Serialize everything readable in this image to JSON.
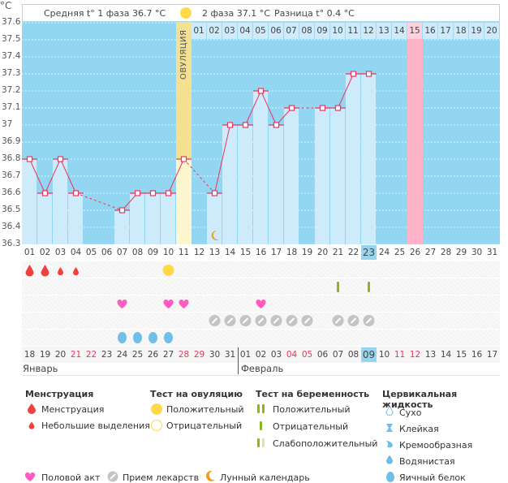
{
  "header": {
    "unit_label": "°C",
    "phase1_avg": "Средняя t° 1 фаза 36.7 °C",
    "phase2_avg": "2 фаза 37.1 °C",
    "difference": "Разница t° 0.4 °C",
    "ovulation_label": "ОВУЛЯЦИЯ"
  },
  "colors": {
    "plot_bg": "#93d6f2",
    "bar_fill": "#cdebfa",
    "line": "#e8365e",
    "ovulation_band": "#f5e08f",
    "ovulation_band_light": "#fdf6cf",
    "pink_day": "#ffb3c6",
    "highlight_day": "#93d6f2"
  },
  "chart_data": {
    "type": "line",
    "title": "",
    "xlabel": "",
    "ylabel": "°C",
    "ylim": [
      36.3,
      37.6
    ],
    "yticks": [
      "37.6",
      "37.5",
      "37.4",
      "37.3",
      "37.2",
      "37.1",
      "37",
      "36.9",
      "36.8",
      "36.7",
      "36.6",
      "36.5",
      "36.4",
      "36.3"
    ],
    "cycle_days": [
      "01",
      "02",
      "03",
      "04",
      "05",
      "06",
      "07",
      "08",
      "09",
      "10",
      "11",
      "12",
      "13",
      "14",
      "15",
      "16",
      "17",
      "18",
      "19",
      "20",
      "21",
      "22",
      "23",
      "24",
      "25",
      "26",
      "27",
      "28",
      "29",
      "30",
      "31"
    ],
    "after_ovulation_days": [
      "01",
      "02",
      "03",
      "04",
      "05",
      "06",
      "07",
      "08",
      "09",
      "10",
      "11",
      "12",
      "13",
      "14",
      "15",
      "16",
      "17",
      "18",
      "19",
      "20"
    ],
    "temperatures": [
      36.8,
      36.6,
      36.8,
      36.6,
      null,
      null,
      36.5,
      36.6,
      36.6,
      36.6,
      36.8,
      null,
      36.6,
      37.0,
      37.0,
      37.2,
      37.0,
      37.1,
      null,
      37.1,
      37.1,
      37.3,
      37.3,
      null,
      null,
      null,
      null,
      null,
      null,
      null,
      null
    ],
    "ovulation_day_index": 11,
    "pink_day_index": 26,
    "today_index": 23,
    "moon_day_index": 13,
    "grid": true
  },
  "events": {
    "menstruation": [
      {
        "day": 1,
        "size": "big"
      },
      {
        "day": 2,
        "size": "big"
      },
      {
        "day": 3,
        "size": "small"
      },
      {
        "day": 4,
        "size": "small"
      }
    ],
    "ovulation_test_positive": [
      10
    ],
    "pregnancy_test_negative": [
      21,
      23
    ],
    "intercourse": [
      7,
      10,
      11,
      16
    ],
    "medication": [
      13,
      14,
      15,
      16,
      17,
      18,
      19,
      21,
      22,
      23
    ],
    "cervical_egg_white": [
      7,
      8,
      9,
      10
    ]
  },
  "calendar": {
    "dates": [
      {
        "d": "18",
        "red": false
      },
      {
        "d": "19",
        "red": false
      },
      {
        "d": "20",
        "red": false
      },
      {
        "d": "21",
        "red": true
      },
      {
        "d": "22",
        "red": true
      },
      {
        "d": "23",
        "red": false
      },
      {
        "d": "24",
        "red": false
      },
      {
        "d": "25",
        "red": false
      },
      {
        "d": "26",
        "red": false
      },
      {
        "d": "27",
        "red": false
      },
      {
        "d": "28",
        "red": true
      },
      {
        "d": "29",
        "red": true
      },
      {
        "d": "30",
        "red": false
      },
      {
        "d": "31",
        "red": false
      },
      {
        "d": "01",
        "red": false
      },
      {
        "d": "02",
        "red": false
      },
      {
        "d": "03",
        "red": false
      },
      {
        "d": "04",
        "red": true
      },
      {
        "d": "05",
        "red": true
      },
      {
        "d": "06",
        "red": false
      },
      {
        "d": "07",
        "red": false
      },
      {
        "d": "08",
        "red": false
      },
      {
        "d": "09",
        "red": false
      },
      {
        "d": "10",
        "red": false
      },
      {
        "d": "11",
        "red": true
      },
      {
        "d": "12",
        "red": true
      },
      {
        "d": "13",
        "red": false
      },
      {
        "d": "14",
        "red": false
      },
      {
        "d": "15",
        "red": false
      },
      {
        "d": "16",
        "red": false
      },
      {
        "d": "17",
        "red": false
      }
    ],
    "month1": "Январь",
    "month2": "Февраль"
  },
  "legend": {
    "menstruation": {
      "title": "Менструация",
      "items": [
        "Менструация",
        "Небольшие выделения"
      ]
    },
    "ovulation_test": {
      "title": "Тест на овуляцию",
      "items": [
        "Положительный",
        "Отрицательный"
      ]
    },
    "pregnancy_test": {
      "title": "Тест на беременность",
      "items": [
        "Положительный",
        "Отрицательный",
        "Слабоположительный"
      ]
    },
    "cervical": {
      "title": "Цервикальная жидкость",
      "items": [
        "Сухо",
        "Клейкая",
        "Кремообразная",
        "Водянистая",
        "Яичный белок"
      ]
    },
    "bottom": [
      "Половой акт",
      "Прием лекарств",
      "Лунный календарь"
    ]
  }
}
